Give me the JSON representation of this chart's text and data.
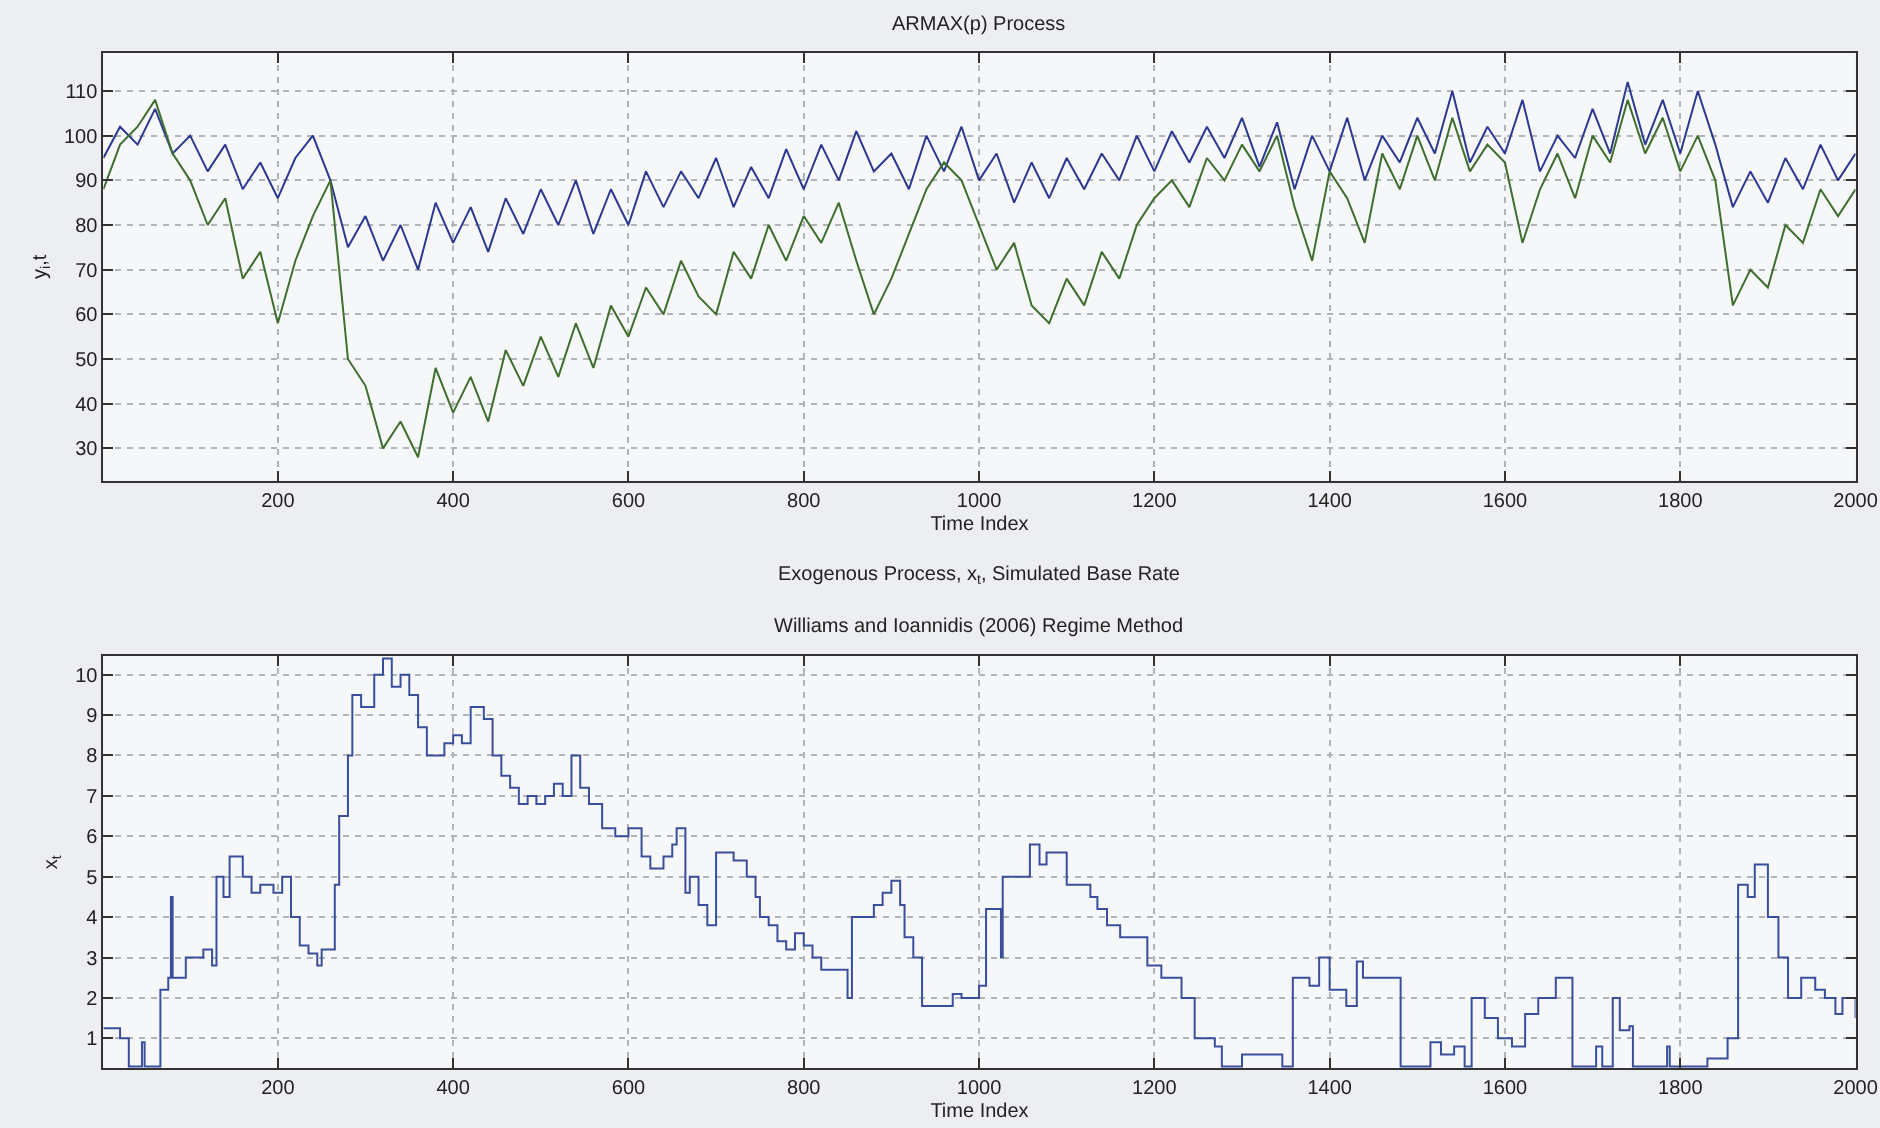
{
  "chart_data": [
    {
      "type": "line",
      "title": "ARMAX(p) Process",
      "xlabel": "Time Index",
      "ylabel": "y$_{i}$,t",
      "x": [
        1,
        20,
        40,
        60,
        80,
        100,
        120,
        140,
        160,
        180,
        200,
        220,
        240,
        260,
        280,
        300,
        320,
        340,
        360,
        380,
        400,
        420,
        440,
        460,
        480,
        500,
        520,
        540,
        560,
        580,
        600,
        620,
        640,
        660,
        680,
        700,
        720,
        740,
        760,
        780,
        800,
        820,
        840,
        860,
        880,
        900,
        920,
        940,
        960,
        980,
        1000,
        1020,
        1040,
        1060,
        1080,
        1100,
        1120,
        1140,
        1160,
        1180,
        1200,
        1220,
        1240,
        1260,
        1280,
        1300,
        1320,
        1340,
        1360,
        1380,
        1400,
        1420,
        1440,
        1460,
        1480,
        1500,
        1520,
        1540,
        1560,
        1580,
        1600,
        1620,
        1640,
        1660,
        1680,
        1700,
        1720,
        1740,
        1760,
        1780,
        1800,
        1820,
        1840,
        1860,
        1880,
        1900,
        1920,
        1940,
        1960,
        1980,
        2000
      ],
      "series": [
        {
          "color": "#2b3990",
          "values": [
            95,
            102,
            98,
            106,
            96,
            100,
            92,
            98,
            88,
            94,
            86,
            95,
            100,
            90,
            75,
            82,
            72,
            80,
            70,
            85,
            76,
            84,
            74,
            86,
            78,
            88,
            80,
            90,
            78,
            88,
            80,
            92,
            84,
            92,
            86,
            95,
            84,
            93,
            86,
            97,
            88,
            98,
            90,
            101,
            92,
            96,
            88,
            100,
            92,
            102,
            90,
            96,
            85,
            94,
            86,
            95,
            88,
            96,
            90,
            100,
            92,
            101,
            94,
            102,
            95,
            104,
            93,
            103,
            88,
            100,
            92,
            104,
            90,
            100,
            94,
            104,
            96,
            110,
            94,
            102,
            96,
            108,
            92,
            100,
            95,
            106,
            96,
            112,
            98,
            108,
            96,
            110,
            98,
            84,
            92,
            85,
            95,
            88,
            98,
            90,
            96
          ]
        },
        {
          "color": "#3f6e2e",
          "values": [
            88,
            98,
            102,
            108,
            96,
            90,
            80,
            86,
            68,
            74,
            58,
            72,
            82,
            90,
            50,
            44,
            30,
            36,
            28,
            48,
            38,
            46,
            36,
            52,
            44,
            55,
            46,
            58,
            48,
            62,
            55,
            66,
            60,
            72,
            64,
            60,
            74,
            68,
            80,
            72,
            82,
            76,
            85,
            72,
            60,
            68,
            78,
            88,
            94,
            90,
            80,
            70,
            76,
            62,
            58,
            68,
            62,
            74,
            68,
            80,
            86,
            90,
            84,
            95,
            90,
            98,
            92,
            100,
            84,
            72,
            92,
            86,
            76,
            96,
            88,
            100,
            90,
            104,
            92,
            98,
            94,
            76,
            88,
            96,
            86,
            100,
            94,
            108,
            96,
            104,
            92,
            100,
            90,
            62,
            70,
            66,
            80,
            76,
            88,
            82,
            88
          ]
        }
      ],
      "xlim": [
        1,
        2000
      ],
      "xticks": [
        200,
        400,
        600,
        800,
        1000,
        1200,
        1400,
        1600,
        1800,
        2000
      ],
      "ylim": [
        22.8,
        118.5
      ],
      "yticks": [
        30,
        40,
        50,
        60,
        70,
        80,
        90,
        100,
        110
      ],
      "grid": true,
      "marker": "none",
      "line_style": "solid"
    },
    {
      "type": "step",
      "title": "Exogenous Process, x$_{t}$, Simulated Base Rate",
      "subtitle": "Williams and Ioannidis (2006) Regime Method",
      "xlabel": "Time Index",
      "ylabel": "x$_{t}$",
      "x": [
        1,
        20,
        28,
        30,
        45,
        48,
        66,
        75,
        78,
        80,
        95,
        115,
        125,
        130,
        138,
        145,
        160,
        170,
        180,
        195,
        205,
        215,
        225,
        235,
        245,
        250,
        265,
        270,
        280,
        285,
        295,
        310,
        320,
        330,
        340,
        350,
        360,
        370,
        390,
        400,
        410,
        420,
        435,
        445,
        455,
        465,
        475,
        485,
        495,
        505,
        515,
        525,
        535,
        545,
        555,
        570,
        585,
        600,
        615,
        625,
        640,
        650,
        655,
        665,
        670,
        680,
        690,
        700,
        720,
        735,
        745,
        750,
        760,
        770,
        780,
        790,
        800,
        810,
        820,
        840,
        850,
        855,
        870,
        880,
        890,
        900,
        910,
        915,
        925,
        935,
        960,
        970,
        980,
        1000,
        1008,
        1025,
        1027,
        1058,
        1069,
        1077,
        1088,
        1100,
        1127,
        1135,
        1146,
        1161,
        1192,
        1208,
        1231,
        1246,
        1269,
        1277,
        1300,
        1346,
        1358,
        1377,
        1388,
        1400,
        1419,
        1431,
        1438,
        1477,
        1481,
        1515,
        1527,
        1542,
        1554,
        1562,
        1577,
        1592,
        1608,
        1623,
        1638,
        1658,
        1665,
        1677,
        1700,
        1704,
        1711,
        1723,
        1731,
        1742,
        1746,
        1777,
        1785,
        1788,
        1831,
        1854,
        1866,
        1877,
        1885,
        1900,
        1912,
        1923,
        1938,
        1954,
        1965,
        1977,
        1985,
        2000
      ],
      "series": [
        {
          "color": "#3a4f9c",
          "values": [
            1.25,
            1.0,
            1.0,
            0.3,
            0.9,
            0.3,
            2.2,
            2.5,
            4.5,
            2.5,
            3.0,
            3.2,
            2.8,
            5.0,
            4.5,
            5.5,
            5.0,
            4.6,
            4.8,
            4.6,
            5.0,
            4.0,
            3.3,
            3.1,
            2.8,
            3.2,
            4.8,
            6.5,
            8.0,
            9.5,
            9.2,
            10.0,
            10.4,
            9.7,
            10.0,
            9.5,
            8.7,
            8.0,
            8.3,
            8.5,
            8.3,
            9.2,
            8.9,
            8.0,
            7.5,
            7.2,
            6.8,
            7.0,
            6.8,
            7.0,
            7.3,
            7.0,
            8.0,
            7.2,
            6.8,
            6.2,
            6.0,
            6.2,
            5.5,
            5.2,
            5.5,
            5.8,
            6.2,
            4.6,
            5.0,
            4.3,
            3.8,
            5.6,
            5.4,
            5.0,
            4.5,
            4.0,
            3.8,
            3.4,
            3.2,
            3.6,
            3.3,
            3.0,
            2.7,
            2.7,
            2.0,
            4.0,
            4.0,
            4.3,
            4.6,
            4.9,
            4.3,
            3.5,
            3.0,
            1.8,
            1.8,
            2.1,
            2.0,
            2.3,
            4.2,
            3.0,
            5.0,
            5.8,
            5.3,
            5.6,
            5.6,
            4.8,
            4.5,
            4.2,
            3.8,
            3.5,
            2.8,
            2.5,
            2.0,
            1.0,
            0.8,
            0.3,
            0.6,
            0.3,
            2.5,
            2.3,
            3.0,
            2.2,
            1.8,
            2.9,
            2.5,
            2.5,
            0.3,
            0.9,
            0.6,
            0.8,
            0.3,
            2.0,
            1.5,
            1.0,
            0.8,
            1.6,
            2.0,
            2.5,
            2.5,
            0.3,
            0.3,
            0.8,
            0.3,
            2.0,
            1.2,
            1.3,
            0.3,
            0.3,
            0.8,
            0.3,
            0.5,
            1.0,
            4.8,
            4.5,
            5.3,
            4.0,
            3.0,
            2.0,
            2.5,
            2.2,
            2.0,
            1.6,
            2.0,
            1.5
          ]
        }
      ],
      "xlim": [
        1,
        2000
      ],
      "xticks": [
        200,
        400,
        600,
        800,
        1000,
        1200,
        1400,
        1600,
        1800,
        2000
      ],
      "ylim": [
        0.26,
        10.45
      ],
      "yticks": [
        1,
        2,
        3,
        4,
        5,
        6,
        7,
        8,
        9,
        10
      ],
      "grid": true,
      "marker": "none",
      "line_style": "solid"
    }
  ]
}
